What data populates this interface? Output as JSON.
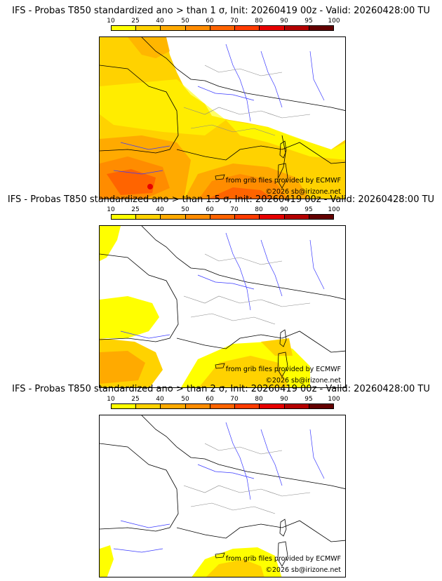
{
  "legend": {
    "labels": [
      "10",
      "25",
      "40",
      "50",
      "60",
      "70",
      "80",
      "90",
      "95",
      "100"
    ],
    "colors": [
      "#ffff00",
      "#ffd200",
      "#ffaa00",
      "#ff8c00",
      "#ff6400",
      "#ff3c00",
      "#e60000",
      "#b40000",
      "#640000"
    ]
  },
  "source_credit": "from grib files provided by ECMWF",
  "copyright": "©2026 sb@irizone.net",
  "panels": [
    {
      "title": "IFS - Probas T850  standardized ano > than 1 σ, Init: 20260419 00z - Valid: 20260428:00 TU"
    },
    {
      "title": "IFS - Probas T850  standardized ano > than 1.5 σ, Init: 20260419 00z - Valid: 20260428:00 TU"
    },
    {
      "title": "IFS - Probas T850  standardized ano > than 2 σ, Init: 20260419 00z - Valid: 20260428:00 TU"
    }
  ]
}
